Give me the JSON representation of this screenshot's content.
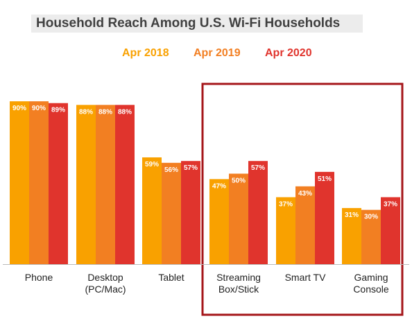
{
  "title": "Household Reach Among U.S. Wi-Fi Households",
  "colors": {
    "Apr 2018": "#f9a100",
    "Apr 2019": "#f27f22",
    "Apr 2020": "#e0342d",
    "highlight_box": "#a5161a",
    "axis": "#bbbbbb"
  },
  "legend": [
    {
      "label": "Apr 2018",
      "color": "#f9a100"
    },
    {
      "label": "Apr 2019",
      "color": "#f27f22"
    },
    {
      "label": "Apr 2020",
      "color": "#e0342d"
    }
  ],
  "chart_data": {
    "type": "bar",
    "title": "Household Reach Among U.S. Wi-Fi Households",
    "categories": [
      [
        "Phone"
      ],
      [
        "Desktop",
        "(PC/Mac)"
      ],
      [
        "Tablet"
      ],
      [
        "Streaming",
        "Box/Stick"
      ],
      [
        "Smart TV"
      ],
      [
        "Gaming",
        "Console"
      ]
    ],
    "series": [
      {
        "name": "Apr 2018",
        "values": [
          90,
          88,
          59,
          47,
          37,
          31
        ],
        "labels": [
          "90%",
          "88%",
          "59%",
          "47%",
          "37%",
          "31%"
        ]
      },
      {
        "name": "Apr 2019",
        "values": [
          90,
          88,
          56,
          50,
          43,
          30
        ],
        "labels": [
          "90%",
          "88%",
          "56%",
          "50%",
          "43%",
          "30%"
        ]
      },
      {
        "name": "Apr 2020",
        "values": [
          89,
          88,
          57,
          57,
          51,
          37
        ],
        "labels": [
          "89%",
          "88%",
          "57%",
          "57%",
          "51%",
          "37%"
        ]
      }
    ],
    "ylim": [
      0,
      100
    ],
    "grid": false,
    "legend_position": "top-center",
    "highlighted_categories": [
      "Streaming Box/Stick",
      "Smart TV",
      "Gaming Console"
    ]
  }
}
